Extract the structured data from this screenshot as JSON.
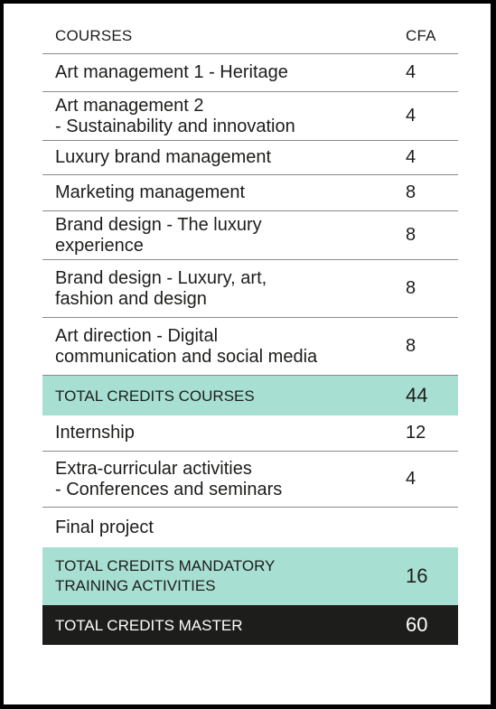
{
  "header": {
    "courses": "COURSES",
    "cfa": "CFA"
  },
  "rows": [
    {
      "line1": "Art management 1 - Heritage",
      "line2": "",
      "cfa": "4"
    },
    {
      "line1": "Art management 2",
      "line2": "- Sustainability and innovation",
      "cfa": "4"
    },
    {
      "line1": "Luxury brand management",
      "line2": "",
      "cfa": "4"
    },
    {
      "line1": "Marketing management",
      "line2": "",
      "cfa": "8"
    },
    {
      "line1": "Brand design - The luxury",
      "line2": "experience",
      "cfa": "8"
    },
    {
      "line1": "Brand design - Luxury, art,",
      "line2": "fashion and design",
      "cfa": "8"
    },
    {
      "line1": "Art direction - Digital",
      "line2": "communication and social media",
      "cfa": "8"
    }
  ],
  "total_courses": {
    "label": "TOTAL CREDITS COURSES",
    "cfa": "44"
  },
  "activities": [
    {
      "line1": "Internship",
      "line2": "",
      "cfa": "12"
    },
    {
      "line1": "Extra-curricular activities",
      "line2": "- Conferences and seminars",
      "cfa": "4"
    },
    {
      "line1": "Final project",
      "line2": "",
      "cfa": ""
    }
  ],
  "total_mandatory": {
    "line1": "TOTAL CREDITS MANDATORY",
    "line2": "TRAINING ACTIVITIES",
    "cfa": "16"
  },
  "total_master": {
    "label": "TOTAL CREDITS MASTER",
    "cfa": "60"
  },
  "colors": {
    "mint": "#a7e0d2",
    "dark": "#1d1d1b",
    "frame": "#000000"
  }
}
